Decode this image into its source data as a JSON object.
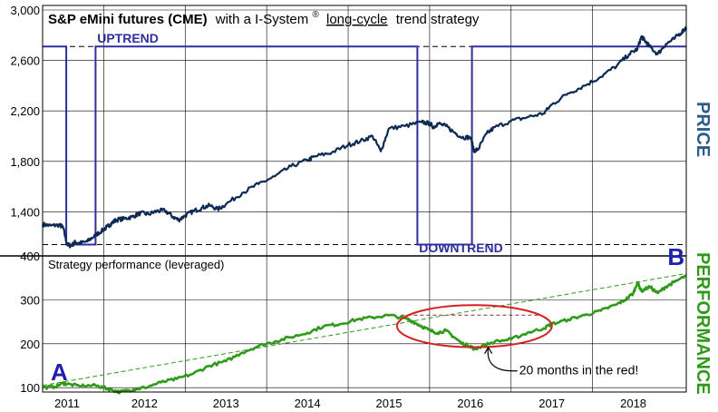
{
  "chart_data": [
    {
      "type": "line",
      "panel": "price",
      "title_bold": "S&P eMini futures (CME)",
      "title_rest": "with a I-System",
      "title_sup": "®",
      "title_underlined": "long-cycle",
      "title_end": "trend strategy",
      "side_label": "PRICE",
      "ylim": [
        1050,
        3000
      ],
      "yticks": [
        "3,000",
        "2,600",
        "2,200",
        "1,800",
        "1,400"
      ],
      "ytick_values": [
        3000,
        2600,
        2200,
        1800,
        1400
      ],
      "grid": true,
      "colors": {
        "price": "#0d2a55",
        "trend": "#2e2e9e",
        "accent": "#2d5a8a"
      },
      "series": [
        {
          "x": [
            2010.75,
            2010.85,
            2010.95,
            2011.0,
            2011.05,
            2011.1,
            2011.15,
            2011.2,
            2011.3,
            2011.4,
            2011.5,
            2011.55,
            2011.6,
            2011.65,
            2011.75,
            2011.85,
            2011.95,
            2012.05,
            2012.15,
            2012.25,
            2012.35,
            2012.42,
            2012.5,
            2012.6,
            2012.7,
            2012.8,
            2012.9,
            2013.0,
            2013.2,
            2013.4,
            2013.6,
            2013.8,
            2014.0,
            2014.1,
            2014.3,
            2014.5,
            2014.65,
            2014.8,
            2014.9,
            2015.0,
            2015.2,
            2015.4,
            2015.5,
            2015.55,
            2015.6,
            2015.7,
            2015.8,
            2015.9,
            2016.0,
            2016.05,
            2016.1,
            2016.2,
            2016.3,
            2016.5,
            2016.7,
            2016.9,
            2017.0,
            2017.2,
            2017.4,
            2017.6,
            2017.8,
            2017.95,
            2018.05,
            2018.1,
            2018.15,
            2018.2,
            2018.3,
            2018.4,
            2018.5,
            2018.6,
            2018.65
          ],
          "y": [
            1300,
            1290,
            1295,
            1280,
            1140,
            1130,
            1160,
            1150,
            1165,
            1215,
            1260,
            1285,
            1310,
            1335,
            1345,
            1360,
            1390,
            1380,
            1405,
            1410,
            1360,
            1335,
            1370,
            1405,
            1430,
            1450,
            1420,
            1460,
            1550,
            1620,
            1680,
            1760,
            1810,
            1840,
            1870,
            1930,
            1960,
            2000,
            1880,
            2060,
            2080,
            2110,
            2100,
            2070,
            2100,
            2080,
            2030,
            1990,
            1990,
            1880,
            1900,
            2020,
            2070,
            2120,
            2150,
            2180,
            2250,
            2340,
            2400,
            2470,
            2560,
            2650,
            2690,
            2790,
            2750,
            2710,
            2650,
            2730,
            2770,
            2830,
            2860
          ]
        },
        {
          "name": "I-System long-cycle trend",
          "x": [
            2010.75,
            2011.04,
            2011.04,
            2011.4,
            2011.4,
            2015.35,
            2015.35,
            2016.02,
            2016.02,
            2018.65
          ],
          "y": [
            2710,
            2710,
            1140,
            1140,
            2710,
            2710,
            1140,
            1140,
            2710,
            2710
          ]
        }
      ],
      "reference_lines": [
        2710,
        1140
      ],
      "annotations": [
        {
          "text": "UPTREND",
          "x": 2011.42,
          "y": 2740
        },
        {
          "text": "DOWNTREND",
          "x": 2015.37,
          "y": 1080
        }
      ]
    },
    {
      "type": "line",
      "panel": "performance",
      "title": "Strategy performance (leveraged)",
      "side_label": "PERFORMANCE",
      "ylim": [
        90,
        400
      ],
      "yticks": [
        "400",
        "300",
        "200",
        "100"
      ],
      "ytick_values": [
        400,
        300,
        200,
        100
      ],
      "categories": [
        "2011",
        "2012",
        "2013",
        "2014",
        "2015",
        "2016",
        "2017",
        "2018"
      ],
      "xlim": [
        2010.75,
        2018.65
      ],
      "grid": true,
      "colors": {
        "performance": "#2f9a1a",
        "trendline": "#2f9a1a",
        "ellipse": "#d42020",
        "letters": "#2020b0"
      },
      "series": [
        {
          "x": [
            2010.75,
            2010.9,
            2011.0,
            2011.05,
            2011.2,
            2011.4,
            2011.5,
            2011.6,
            2011.7,
            2011.8,
            2011.9,
            2012.0,
            2012.2,
            2012.4,
            2012.6,
            2012.8,
            2013.0,
            2013.2,
            2013.4,
            2013.6,
            2013.8,
            2014.0,
            2014.2,
            2014.4,
            2014.6,
            2014.8,
            2015.0,
            2015.2,
            2015.3,
            2015.4,
            2015.5,
            2015.6,
            2015.7,
            2015.8,
            2015.9,
            2016.0,
            2016.05,
            2016.1,
            2016.3,
            2016.5,
            2016.7,
            2016.9,
            2017.0,
            2017.2,
            2017.4,
            2017.6,
            2017.8,
            2017.9,
            2018.0,
            2018.05,
            2018.1,
            2018.2,
            2018.3,
            2018.4,
            2018.5,
            2018.65
          ],
          "y": [
            100,
            102,
            110,
            108,
            104,
            105,
            100,
            95,
            90,
            94,
            97,
            100,
            112,
            120,
            132,
            150,
            160,
            180,
            195,
            205,
            215,
            225,
            240,
            245,
            255,
            260,
            265,
            258,
            250,
            240,
            230,
            225,
            230,
            215,
            200,
            195,
            188,
            192,
            205,
            210,
            225,
            235,
            245,
            255,
            265,
            275,
            290,
            300,
            315,
            340,
            320,
            330,
            315,
            330,
            340,
            355
          ]
        },
        {
          "name": "trend line",
          "x": [
            2010.75,
            2018.65
          ],
          "y": [
            105,
            360
          ]
        },
        {
          "name": "flat reference",
          "x": [
            2015.15,
            2016.85
          ],
          "y": [
            265,
            265
          ]
        }
      ],
      "markers": {
        "start": "A",
        "end": "B"
      },
      "annotations": [
        {
          "text": "20 months in the red!",
          "x": 2016.6,
          "y": 130
        }
      ],
      "ellipse": {
        "cx": 2016.05,
        "cy": 240,
        "rx": 0.95,
        "ry": 48
      }
    }
  ]
}
